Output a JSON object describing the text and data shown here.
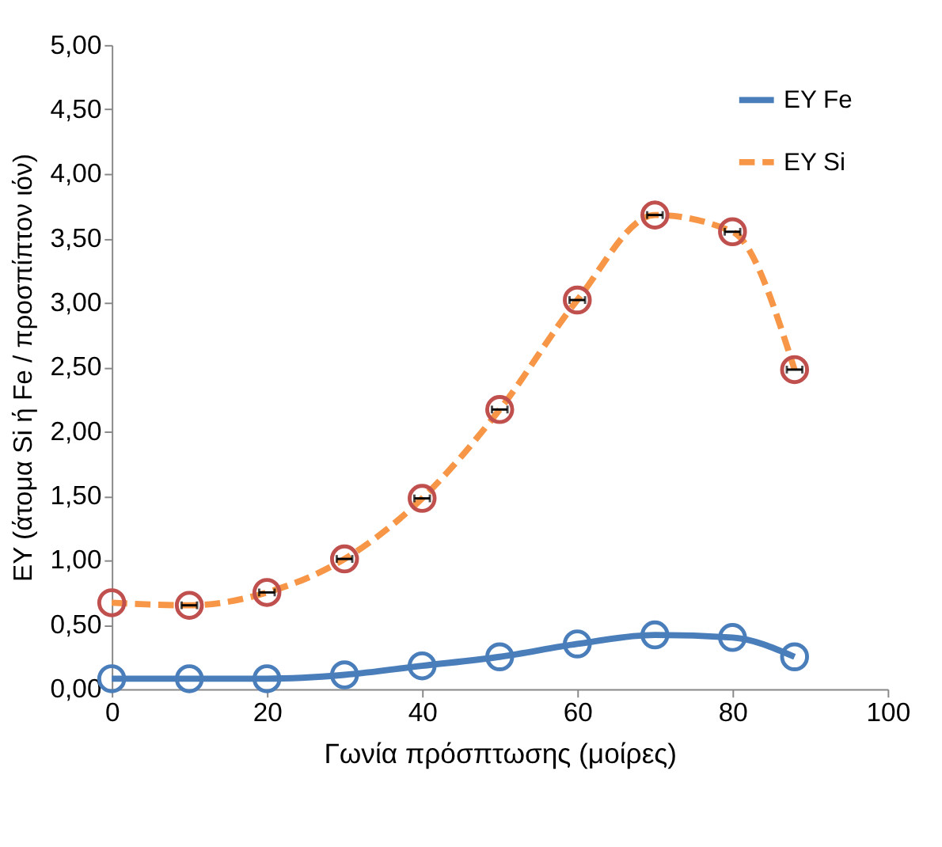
{
  "chart_data": {
    "type": "line",
    "xlabel": "Γωνία πρόσπτωσης (μοίρες)",
    "ylabel": "ΕΥ (άτομα Si ή Fe / προσπίπτον ιόν)",
    "x": [
      0,
      10,
      20,
      30,
      40,
      50,
      60,
      70,
      80,
      88
    ],
    "series": [
      {
        "name": "ΕΥ Fe",
        "color": "#4a7ebb",
        "marker": "circle",
        "line_style": "solid",
        "values": [
          0.08,
          0.08,
          0.08,
          0.11,
          0.18,
          0.25,
          0.35,
          0.42,
          0.4,
          0.25
        ]
      },
      {
        "name": "ΕΥ Si",
        "color": "#f79646",
        "marker": "none",
        "line_style": "dashed",
        "values": [
          0.67,
          0.65,
          0.75,
          1.01,
          1.48,
          2.17,
          3.02,
          3.68,
          3.55,
          2.48
        ]
      },
      {
        "type": "scatter",
        "color": "#c0504d",
        "marker": "circle",
        "values": [
          0.67,
          0.65,
          0.75,
          1.01,
          1.48,
          2.17,
          3.02,
          3.68,
          3.55,
          2.48
        ],
        "xerrors": [
          null,
          1,
          1,
          1,
          1,
          1,
          1,
          1,
          1,
          1
        ]
      }
    ],
    "xlim": [
      0,
      100
    ],
    "xticks": [
      0,
      20,
      40,
      60,
      80,
      100
    ],
    "ylim": [
      0,
      5
    ],
    "yticks": [
      {
        "value": 0,
        "label": "0,00"
      },
      {
        "value": 0.5,
        "label": "0,50"
      },
      {
        "value": 1,
        "label": "1,00"
      },
      {
        "value": 1.5,
        "label": "1,50"
      },
      {
        "value": 2,
        "label": "2,00"
      },
      {
        "value": 2.5,
        "label": "2,50"
      },
      {
        "value": 3,
        "label": "3,00"
      },
      {
        "value": 3.5,
        "label": "3,50"
      },
      {
        "value": 4,
        "label": "4,00"
      },
      {
        "value": 4.5,
        "label": "4,50"
      },
      {
        "value": 5,
        "label": "5,00"
      }
    ],
    "grid": false,
    "legend": "top right"
  }
}
